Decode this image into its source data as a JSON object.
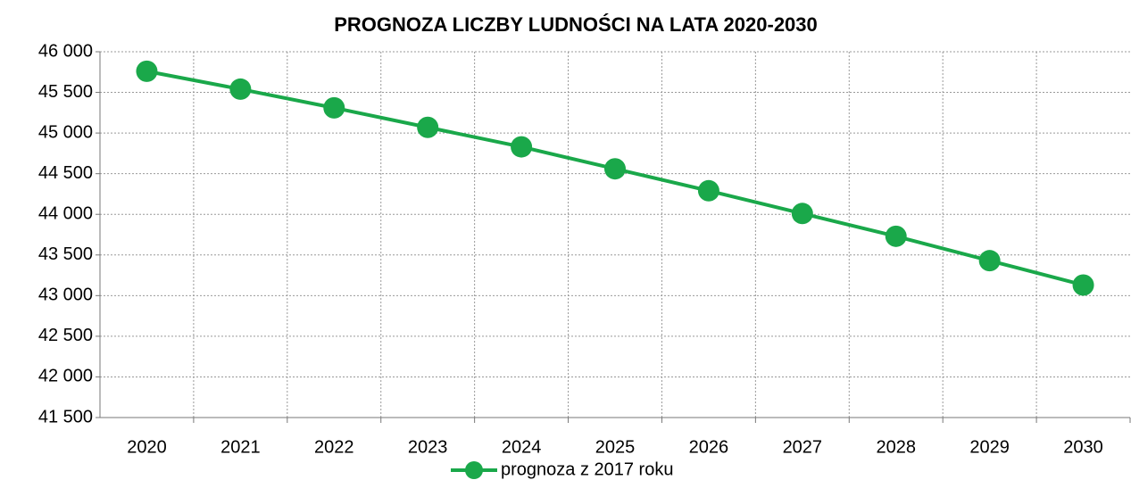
{
  "chart_data": {
    "type": "line",
    "title": "PROGNOZA LICZBY LUDNOŚCI NA LATA 2020-2030",
    "categories": [
      "2020",
      "2021",
      "2022",
      "2023",
      "2024",
      "2025",
      "2026",
      "2027",
      "2028",
      "2029",
      "2030"
    ],
    "series": [
      {
        "name": "prognoza z 2017 roku",
        "color": "#1aa84a",
        "values": [
          45760,
          45540,
          45310,
          45070,
          44830,
          44560,
          44290,
          44010,
          43730,
          43430,
          43130
        ]
      }
    ],
    "ylim": [
      41500,
      46000
    ],
    "yticks": [
      {
        "value": 41500,
        "label": "41 500"
      },
      {
        "value": 42000,
        "label": "42 000"
      },
      {
        "value": 42500,
        "label": "42 500"
      },
      {
        "value": 43000,
        "label": "43 000"
      },
      {
        "value": 43500,
        "label": "43 500"
      },
      {
        "value": 44000,
        "label": "44 000"
      },
      {
        "value": 44500,
        "label": "44 500"
      },
      {
        "value": 45000,
        "label": "45 000"
      },
      {
        "value": 45500,
        "label": "45 500"
      },
      {
        "value": 46000,
        "label": "46 000"
      }
    ],
    "grid": true,
    "legend": "bottom"
  }
}
